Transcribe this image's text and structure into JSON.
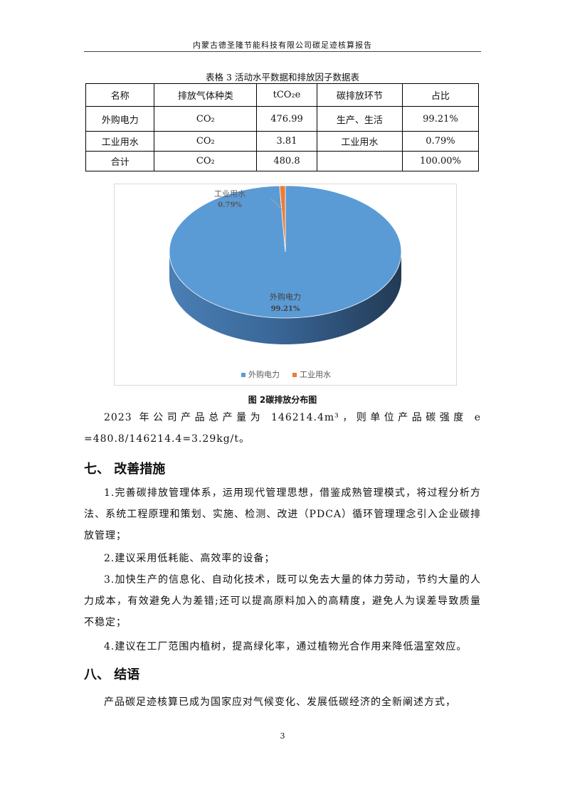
{
  "header": "内蒙古德圣隆节能科技有限公司碳足迹核算报告",
  "table": {
    "caption": "表格 3 活动水平数据和排放因子数据表",
    "columns": [
      "名称",
      "排放气体种类",
      "tCO₂e",
      "碳排放环节",
      "占比"
    ],
    "rows": [
      [
        "外购电力",
        "CO₂",
        "476.99",
        "生产、生活",
        "99.21%"
      ],
      [
        "工业用水",
        "CO₂",
        "3.81",
        "工业用水",
        "0.79%"
      ],
      [
        "合计",
        "CO₂",
        "480.8",
        "",
        "100.00%"
      ]
    ]
  },
  "chart_data": {
    "type": "pie",
    "categories": [
      "外购电力",
      "工业用水"
    ],
    "values": [
      99.21,
      0.79
    ],
    "data_labels": [
      "99.21%",
      "0.79%"
    ],
    "colors": [
      "#5B9BD5",
      "#ED7D31"
    ],
    "legend": "bottom",
    "style": "3d"
  },
  "figure_caption": "图 2碳排放分布图",
  "para1": "2023 年公司产品总产量为 146214.4m³，则单位产品碳强度 e =480.8/146214.4=3.29kg/t。",
  "section7": "七、   改善措施",
  "items": [
    "1.完善碳排放管理体系，运用现代管理思想，借鉴成熟管理模式，将过程分析方法、系统工程原理和策划、实施、检测、改进（PDCA）循环管理理念引入企业碳排放管理；",
    "2.建议采用低耗能、高效率的设备；",
    "3.加快生产的信息化、自动化技术，既可以免去大量的体力劳动，节约大量的人力成本，有效避免人为差错;还可以提高原料加入的高精度，避免人为误差导致质量不稳定；",
    "4.建议在工厂范围内植树，提高绿化率，通过植物光合作用来降低温室效应。"
  ],
  "section8": "八、   结语",
  "para_end": "产品碳足迹核算已成为国家应对气候变化、发展低碳经济的全新阐述方式，",
  "page_number": "3"
}
